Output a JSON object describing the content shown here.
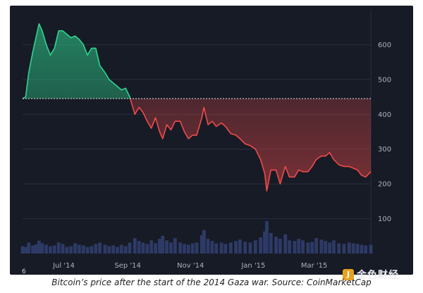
{
  "caption": "Bitcoin’s price after the start of the 2014 Gaza war. Source: CoinMarketCap",
  "corner_label": "6",
  "watermark": {
    "text": "金色财经",
    "logo_glyph": "J"
  },
  "colors": {
    "background": "#171b26",
    "grid": "#2a2f3c",
    "up_line": "#2fd58f",
    "down_line": "#f04a4a",
    "volume": "#2e3a66",
    "baseline": "#e6e6e6",
    "tick_text": "#aab0bd"
  },
  "chart_data": {
    "type": "area",
    "title": "",
    "xlabel": "",
    "ylabel": "",
    "ylim": [
      0,
      700
    ],
    "yticks": [
      100,
      200,
      300,
      400,
      500,
      600
    ],
    "xticks": [
      {
        "date": "2014-07-01",
        "label": "Jul '14"
      },
      {
        "date": "2014-09-01",
        "label": "Sep '14"
      },
      {
        "date": "2014-11-01",
        "label": "Nov '14"
      },
      {
        "date": "2015-01-01",
        "label": "Jan '15"
      },
      {
        "date": "2015-03-01",
        "label": "Mar '15"
      }
    ],
    "x_range": [
      "2014-05-22",
      "2015-04-25"
    ],
    "baseline": 445,
    "grid": true,
    "series": [
      {
        "type": "line",
        "x": [
          "2014-05-22",
          "2014-05-25",
          "2014-05-28",
          "2014-06-01",
          "2014-06-04",
          "2014-06-07",
          "2014-06-10",
          "2014-06-14",
          "2014-06-18",
          "2014-06-22",
          "2014-06-26",
          "2014-06-30",
          "2014-07-04",
          "2014-07-08",
          "2014-07-12",
          "2014-07-16",
          "2014-07-20",
          "2014-07-24",
          "2014-07-28",
          "2014-08-01",
          "2014-08-05",
          "2014-08-10",
          "2014-08-14",
          "2014-08-18",
          "2014-08-22",
          "2014-08-26",
          "2014-08-30",
          "2014-09-03",
          "2014-09-08",
          "2014-09-12",
          "2014-09-16",
          "2014-09-20",
          "2014-09-24",
          "2014-09-28",
          "2014-10-02",
          "2014-10-05",
          "2014-10-09",
          "2014-10-13",
          "2014-10-17",
          "2014-10-22",
          "2014-10-26",
          "2014-10-30",
          "2014-11-03",
          "2014-11-07",
          "2014-11-12",
          "2014-11-14",
          "2014-11-18",
          "2014-11-22",
          "2014-11-26",
          "2014-12-01",
          "2014-12-05",
          "2014-12-10",
          "2014-12-15",
          "2014-12-19",
          "2014-12-24",
          "2014-12-29",
          "2015-01-03",
          "2015-01-08",
          "2015-01-12",
          "2015-01-14",
          "2015-01-18",
          "2015-01-23",
          "2015-01-27",
          "2015-02-01",
          "2015-02-05",
          "2015-02-10",
          "2015-02-14",
          "2015-02-18",
          "2015-02-23",
          "2015-02-27",
          "2015-03-03",
          "2015-03-08",
          "2015-03-12",
          "2015-03-16",
          "2015-03-20",
          "2015-03-25",
          "2015-03-30",
          "2015-04-04",
          "2015-04-08",
          "2015-04-12",
          "2015-04-16",
          "2015-04-20",
          "2015-04-25"
        ],
        "values": [
          445,
          450,
          520,
          580,
          620,
          660,
          640,
          600,
          570,
          590,
          640,
          640,
          630,
          620,
          625,
          615,
          600,
          570,
          590,
          590,
          540,
          520,
          500,
          490,
          480,
          470,
          475,
          450,
          400,
          420,
          405,
          380,
          360,
          390,
          350,
          330,
          370,
          355,
          380,
          380,
          350,
          330,
          340,
          340,
          390,
          420,
          370,
          380,
          365,
          375,
          365,
          345,
          340,
          330,
          315,
          310,
          300,
          270,
          230,
          180,
          240,
          240,
          200,
          250,
          220,
          220,
          240,
          235,
          235,
          250,
          270,
          280,
          280,
          290,
          270,
          255,
          250,
          250,
          245,
          240,
          225,
          220,
          235
        ]
      },
      {
        "type": "bar",
        "name": "volume",
        "values": [
          20,
          18,
          30,
          22,
          25,
          35,
          28,
          24,
          20,
          22,
          30,
          26,
          18,
          20,
          28,
          24,
          22,
          18,
          20,
          26,
          30,
          24,
          20,
          22,
          18,
          24,
          20,
          30,
          42,
          34,
          30,
          26,
          36,
          28,
          40,
          48,
          36,
          30,
          42,
          30,
          26,
          24,
          28,
          30,
          50,
          64,
          40,
          34,
          28,
          30,
          26,
          30,
          34,
          38,
          32,
          30,
          36,
          44,
          60,
          88,
          56,
          46,
          40,
          52,
          36,
          34,
          40,
          36,
          30,
          32,
          42,
          38,
          34,
          30,
          36,
          28,
          26,
          30,
          28,
          26,
          24,
          22,
          24
        ]
      }
    ]
  }
}
